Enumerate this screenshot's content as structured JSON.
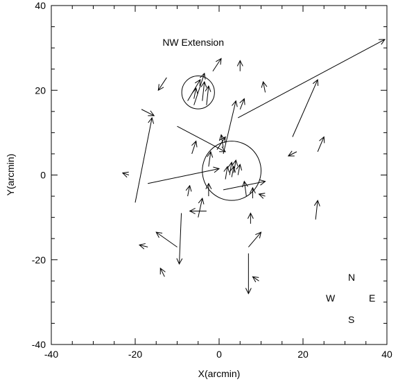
{
  "chart_data": {
    "type": "vector-field",
    "xlabel": "X(arcmin)",
    "ylabel": "Y(arcmin)",
    "xlim": [
      -40,
      40
    ],
    "ylim": [
      -40,
      40
    ],
    "x_ticks": [
      -40,
      -20,
      0,
      20,
      40
    ],
    "y_ticks": [
      -40,
      -20,
      0,
      20,
      40
    ],
    "grid": false,
    "annotation": {
      "text": "NW Extension",
      "x": -13.5,
      "y": 30.5
    },
    "compass": {
      "N": "N",
      "S": "S",
      "E": "E",
      "W": "W"
    },
    "circles": [
      {
        "name": "nw-extension-circle",
        "cx": -5,
        "cy": 19.5,
        "r": 3.9
      },
      {
        "name": "central-circle",
        "cx": 3,
        "cy": 1,
        "r": 7
      }
    ],
    "vectors": [
      {
        "x0": -20,
        "y0": -6.5,
        "x1": -16,
        "y1": 13.5
      },
      {
        "x0": -17,
        "y0": -2,
        "x1": 0,
        "y1": 1.5
      },
      {
        "x0": -10,
        "y0": 11.5,
        "x1": 1.5,
        "y1": 5.5
      },
      {
        "x0": 4.5,
        "y0": 13.5,
        "x1": 39.5,
        "y1": 32
      },
      {
        "x0": 17.5,
        "y0": 9,
        "x1": 23.5,
        "y1": 22.5
      },
      {
        "x0": 1,
        "y0": -3.5,
        "x1": 11,
        "y1": -1.5
      },
      {
        "x0": -9,
        "y0": -9,
        "x1": -9.5,
        "y1": -21
      },
      {
        "x0": 7,
        "y0": -18.5,
        "x1": 7,
        "y1": -28
      },
      {
        "x0": -3,
        "y0": -8.5,
        "x1": -7,
        "y1": -8.5
      },
      {
        "x0": 1,
        "y0": 5,
        "x1": 4,
        "y1": 17.5
      },
      {
        "x0": -6,
        "y0": 16.5,
        "x1": -3.5,
        "y1": 24
      },
      {
        "x0": -7.5,
        "y0": 17.5,
        "x1": -4.5,
        "y1": 22.5
      },
      {
        "x0": -4,
        "y0": 17.5,
        "x1": -3.5,
        "y1": 22
      },
      {
        "x0": -6,
        "y0": 18,
        "x1": -5.5,
        "y1": 20.5
      },
      {
        "x0": -3,
        "y0": 16.5,
        "x1": -2.5,
        "y1": 21
      },
      {
        "x0": -12.5,
        "y0": 23,
        "x1": -14.5,
        "y1": 20
      },
      {
        "x0": -18.5,
        "y0": 15.5,
        "x1": -15.5,
        "y1": 14
      },
      {
        "x0": 5,
        "y0": 24.5,
        "x1": 5,
        "y1": 27
      },
      {
        "x0": 11,
        "y0": 19.5,
        "x1": 10.5,
        "y1": 22
      },
      {
        "x0": 5,
        "y0": 15.5,
        "x1": 6,
        "y1": 18
      },
      {
        "x0": -1.5,
        "y0": 24.5,
        "x1": 0.5,
        "y1": 27.5
      },
      {
        "x0": 1,
        "y0": 6.5,
        "x1": 0.5,
        "y1": 9.5
      },
      {
        "x0": -0.5,
        "y0": 6,
        "x1": 1.5,
        "y1": 9
      },
      {
        "x0": -6.5,
        "y0": 5,
        "x1": -5.5,
        "y1": 8
      },
      {
        "x0": -2.5,
        "y0": 2,
        "x1": -2,
        "y1": 5.5
      },
      {
        "x0": 1.5,
        "y0": -1,
        "x1": 2,
        "y1": 2
      },
      {
        "x0": 2.5,
        "y0": 0,
        "x1": 3,
        "y1": 3
      },
      {
        "x0": 3.5,
        "y0": 0.5,
        "x1": 4,
        "y1": 3.5
      },
      {
        "x0": 4.5,
        "y0": 0,
        "x1": 5,
        "y1": 2.5
      },
      {
        "x0": 3,
        "y0": -0.5,
        "x1": 3.5,
        "y1": 2
      },
      {
        "x0": 6.5,
        "y0": -5,
        "x1": 6,
        "y1": -1.5
      },
      {
        "x0": 8,
        "y0": -5.5,
        "x1": 8,
        "y1": -3
      },
      {
        "x0": 11,
        "y0": -5,
        "x1": 9.5,
        "y1": -4.5
      },
      {
        "x0": 7.5,
        "y0": -11.5,
        "x1": 7.5,
        "y1": -9
      },
      {
        "x0": 7,
        "y0": -17,
        "x1": 10,
        "y1": -13.5
      },
      {
        "x0": 9.5,
        "y0": -25,
        "x1": 8,
        "y1": -24
      },
      {
        "x0": -5,
        "y0": -10,
        "x1": -4,
        "y1": -5.5
      },
      {
        "x0": -7.5,
        "y0": -5,
        "x1": -7,
        "y1": -2.5
      },
      {
        "x0": -2.5,
        "y0": -5,
        "x1": -2.5,
        "y1": -2
      },
      {
        "x0": -10,
        "y0": -17,
        "x1": -15,
        "y1": -13.5
      },
      {
        "x0": -17,
        "y0": -17,
        "x1": -19,
        "y1": -16.5
      },
      {
        "x0": -13,
        "y0": -24,
        "x1": -14,
        "y1": -22
      },
      {
        "x0": -21.5,
        "y0": 0,
        "x1": -23,
        "y1": 0.5
      },
      {
        "x0": 18.5,
        "y0": 5.5,
        "x1": 16.5,
        "y1": 4.5
      },
      {
        "x0": 23.5,
        "y0": 5.5,
        "x1": 25,
        "y1": 9
      },
      {
        "x0": 23,
        "y0": -10.5,
        "x1": 23.5,
        "y1": -6
      }
    ]
  }
}
